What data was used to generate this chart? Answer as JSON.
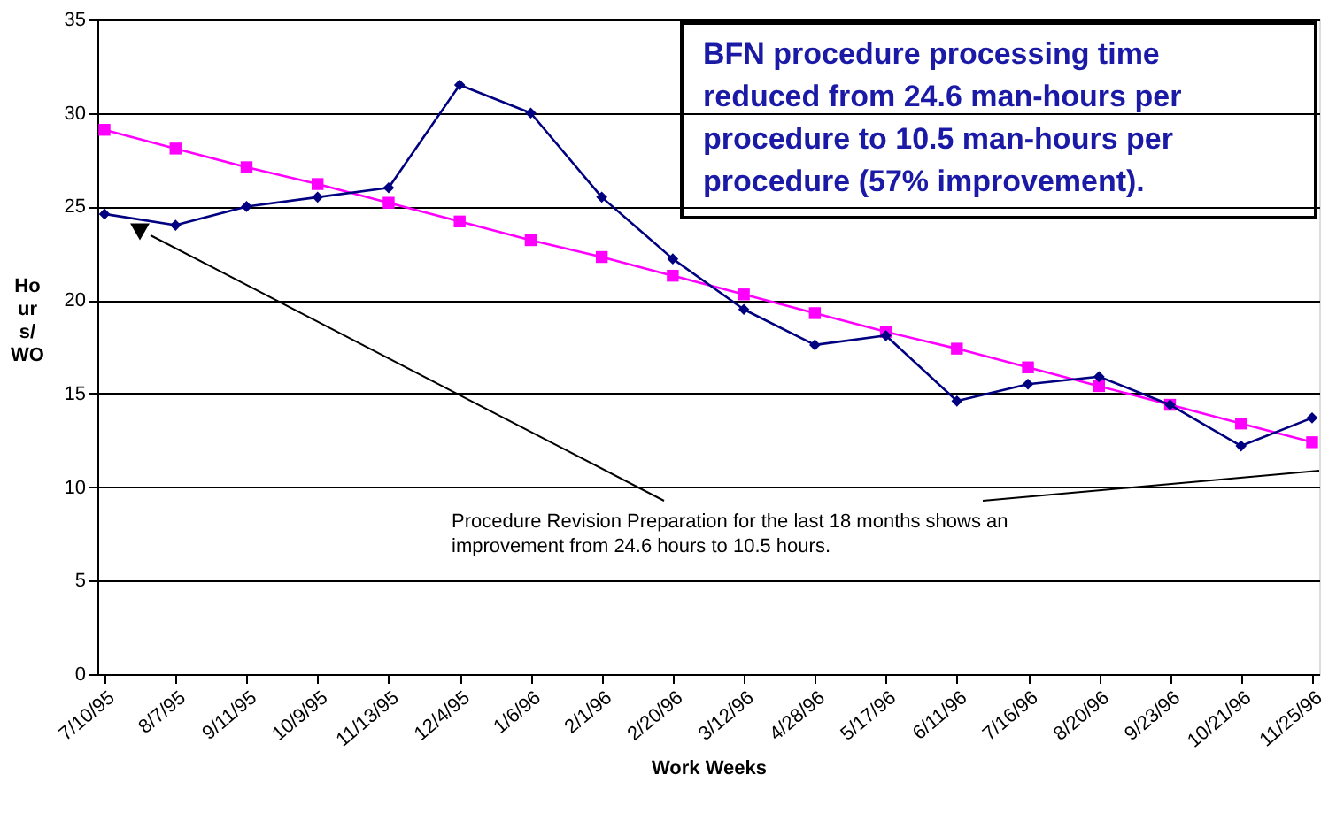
{
  "chart_data": {
    "type": "line",
    "xlabel": "Work Weeks",
    "ylabel": "Hours/WO",
    "categories": [
      "7/10/95",
      "8/7/95",
      "9/11/95",
      "10/9/95",
      "11/13/95",
      "12/4/95",
      "1/6/96",
      "2/1/96",
      "2/20/96",
      "3/12/96",
      "4/28/96",
      "5/17/96",
      "6/11/96",
      "7/16/96",
      "8/20/96",
      "9/23/96",
      "10/21/96",
      "11/25/96"
    ],
    "series": [
      {
        "color": "#000080",
        "marker": "diamond",
        "values": [
          24.6,
          24.0,
          25.0,
          25.5,
          26.0,
          31.5,
          30.0,
          25.5,
          22.2,
          19.5,
          17.6,
          18.1,
          14.6,
          15.5,
          15.9,
          14.4,
          12.2,
          13.7
        ]
      },
      {
        "color": "#ff00ff",
        "marker": "square",
        "values": [
          29.1,
          28.1,
          27.1,
          26.2,
          25.2,
          24.2,
          23.2,
          22.3,
          21.3,
          20.3,
          19.3,
          18.3,
          17.4,
          16.4,
          15.4,
          14.4,
          13.4,
          12.4
        ]
      }
    ],
    "ylim": [
      0,
      35
    ],
    "yticks": [
      0,
      5,
      10,
      15,
      20,
      25,
      30,
      35
    ],
    "grid": "y",
    "line_style": "solid",
    "annotations": [
      "BFN procedure processing time reduced from 24.6 man-hours per procedure to 10.5 man-hours per procedure (57% improvement).",
      "Procedure Revision Preparation for the last 18 months shows an improvement from 24.6 hours to 10.5 hours."
    ]
  }
}
